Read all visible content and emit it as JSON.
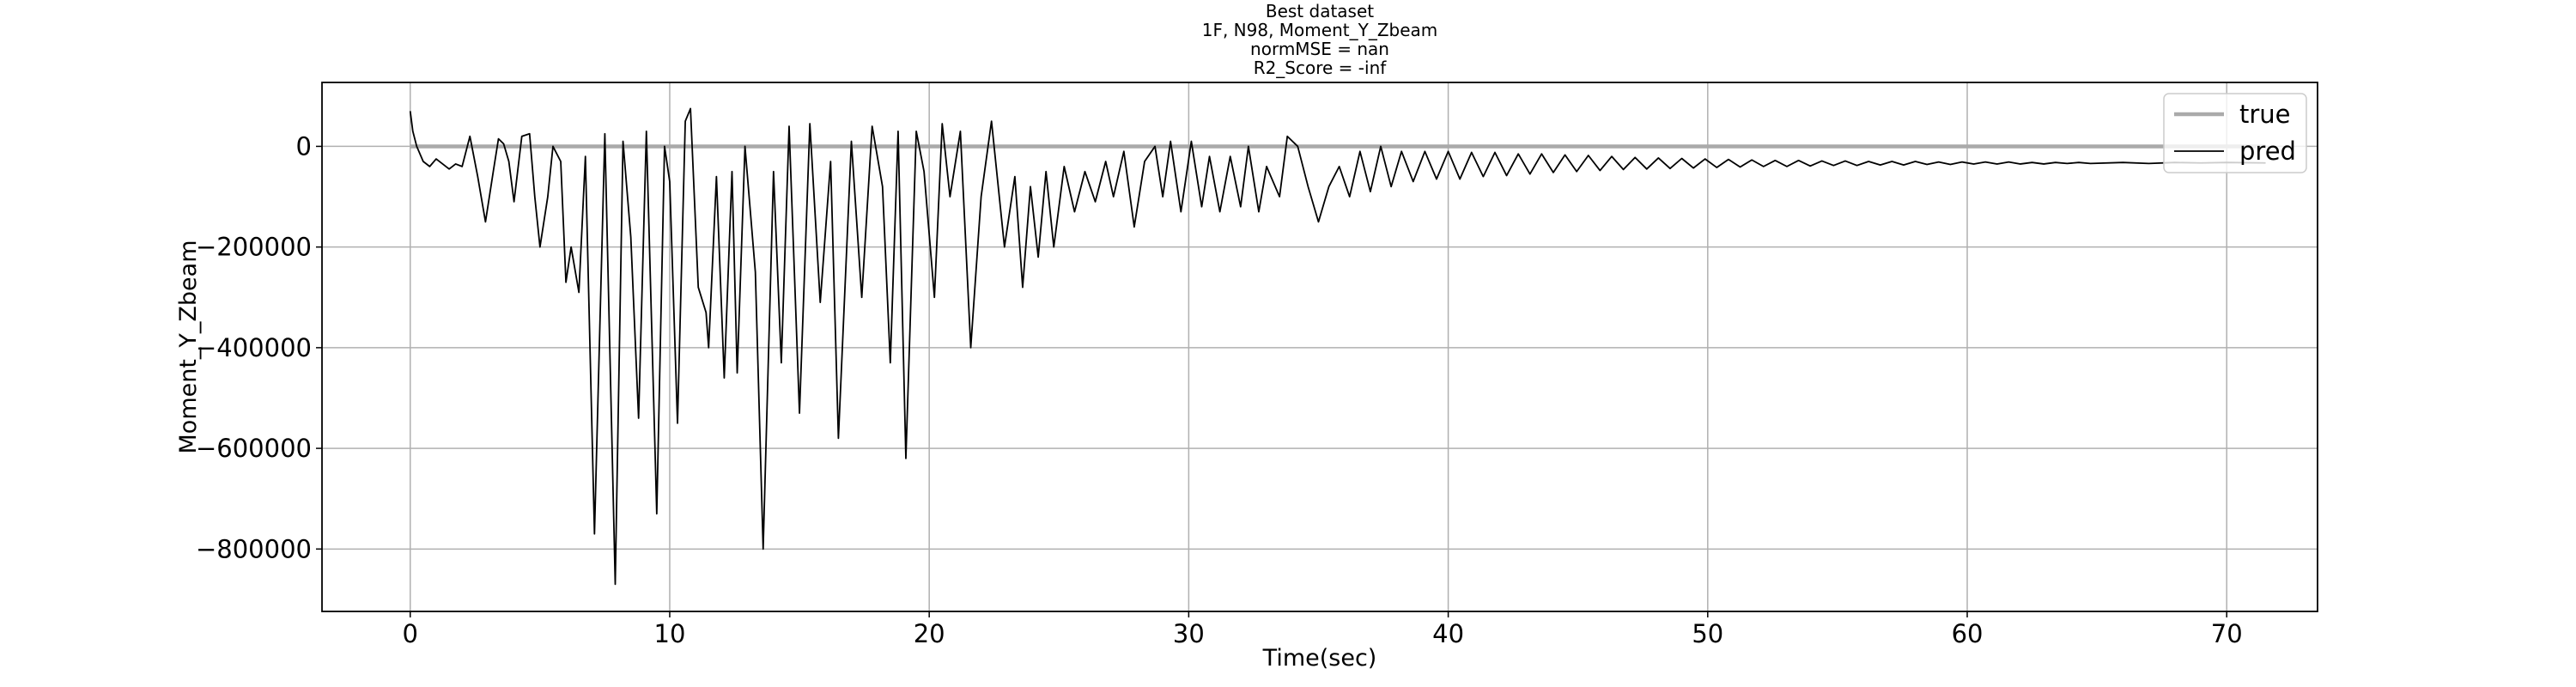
{
  "chart_data": {
    "type": "line",
    "title": [
      "Best dataset",
      "1F, N98, Moment_Y_Zbeam",
      "normMSE = nan",
      "R2_Score = -inf"
    ],
    "x_label": "Time(sec)",
    "y_label": "Moment_Y_Zbeam",
    "xlim": [
      -3.4,
      73.5
    ],
    "ylim": [
      -924000,
      127000
    ],
    "xticks": [
      0,
      10,
      20,
      30,
      40,
      50,
      60,
      70
    ],
    "yticks": [
      {
        "value": -800000,
        "label": "−800000"
      },
      {
        "value": -600000,
        "label": "−600000"
      },
      {
        "value": -400000,
        "label": "−400000"
      },
      {
        "value": -200000,
        "label": "−200000"
      },
      0
    ],
    "grid": true,
    "legend": "upper right",
    "series": [
      {
        "name": "true",
        "color": "#aaaaaa",
        "x": [
          0,
          71.5
        ],
        "values": [
          0,
          0
        ]
      },
      {
        "name": "pred",
        "color": "#000000",
        "x": [
          0,
          0.1,
          0.25,
          0.5,
          0.75,
          1.0,
          1.25,
          1.5,
          1.75,
          2.0,
          2.3,
          2.6,
          2.9,
          3.2,
          3.4,
          3.6,
          3.8,
          4.0,
          4.3,
          4.6,
          4.8,
          5.0,
          5.3,
          5.5,
          5.8,
          6.0,
          6.2,
          6.5,
          6.75,
          7.1,
          7.5,
          7.9,
          8.2,
          8.5,
          8.8,
          9.1,
          9.5,
          9.8,
          10.0,
          10.3,
          10.6,
          10.8,
          11.1,
          11.4,
          11.5,
          11.8,
          12.1,
          12.4,
          12.6,
          12.9,
          13.3,
          13.6,
          14.0,
          14.3,
          14.6,
          15.0,
          15.4,
          15.8,
          16.2,
          16.5,
          17.0,
          17.4,
          17.8,
          18.2,
          18.5,
          18.8,
          19.1,
          19.5,
          19.8,
          20.2,
          20.5,
          20.8,
          21.2,
          21.6,
          22.0,
          22.4,
          22.9,
          23.3,
          23.6,
          23.9,
          24.2,
          24.5,
          24.8,
          25.2,
          25.6,
          26.0,
          26.4,
          26.8,
          27.1,
          27.5,
          27.9,
          28.3,
          28.7,
          29.0,
          29.3,
          29.7,
          30.1,
          30.5,
          30.8,
          31.2,
          31.6,
          32.0,
          32.3,
          32.7,
          33.0,
          33.5,
          33.8,
          34.2,
          34.6,
          35.0,
          35.4,
          35.8,
          36.2,
          36.6,
          37.0,
          37.4,
          37.8,
          38.2,
          38.65,
          39.1,
          39.55,
          40.0,
          40.45,
          40.9,
          41.35,
          41.8,
          42.25,
          42.7,
          43.15,
          43.6,
          44.05,
          44.5,
          44.95,
          45.4,
          45.85,
          46.3,
          46.75,
          47.2,
          47.65,
          48.1,
          48.55,
          49.0,
          49.45,
          49.9,
          50.35,
          50.8,
          51.25,
          51.7,
          52.15,
          52.6,
          53.05,
          53.5,
          53.95,
          54.4,
          54.85,
          55.3,
          55.75,
          56.2,
          56.65,
          57.1,
          57.55,
          58.0,
          58.45,
          58.9,
          59.35,
          59.8,
          60.25,
          60.7,
          61.15,
          61.6,
          62.05,
          62.5,
          62.95,
          63.4,
          63.85,
          64.3,
          64.75,
          66,
          67,
          68,
          69,
          70,
          71.5
        ],
        "values": [
          70000,
          30000,
          0,
          -30000,
          -40000,
          -25000,
          -35000,
          -45000,
          -35000,
          -40000,
          20000,
          -60000,
          -150000,
          -50000,
          15000,
          5000,
          -30000,
          -110000,
          20000,
          25000,
          -100000,
          -200000,
          -100000,
          0,
          -30000,
          -270000,
          -200000,
          -290000,
          -20000,
          -770000,
          25000,
          -870000,
          10000,
          -180000,
          -540000,
          30000,
          -730000,
          0,
          -70000,
          -550000,
          50000,
          75000,
          -280000,
          -330000,
          -400000,
          -60000,
          -460000,
          -50000,
          -450000,
          0,
          -250000,
          -800000,
          -50000,
          -430000,
          40000,
          -530000,
          45000,
          -310000,
          -30000,
          -580000,
          10000,
          -300000,
          40000,
          -80000,
          -430000,
          30000,
          -620000,
          30000,
          -50000,
          -300000,
          45000,
          -100000,
          30000,
          -400000,
          -100000,
          50000,
          -200000,
          -60000,
          -280000,
          -80000,
          -220000,
          -50000,
          -200000,
          -40000,
          -130000,
          -50000,
          -110000,
          -30000,
          -100000,
          -10000,
          -160000,
          -30000,
          0,
          -100000,
          10000,
          -130000,
          10000,
          -120000,
          -20000,
          -130000,
          -20000,
          -120000,
          0,
          -130000,
          -40000,
          -100000,
          20000,
          0,
          -80000,
          -150000,
          -80000,
          -40000,
          -100000,
          -10000,
          -90000,
          0,
          -80000,
          -10000,
          -70000,
          -10000,
          -65000,
          -10000,
          -65000,
          -12000,
          -60000,
          -12000,
          -58000,
          -15000,
          -55000,
          -15000,
          -52000,
          -17000,
          -50000,
          -18000,
          -48000,
          -20000,
          -46000,
          -22000,
          -45000,
          -23000,
          -44000,
          -24000,
          -43000,
          -25000,
          -42000,
          -26000,
          -41000,
          -27000,
          -40000,
          -28000,
          -40000,
          -28000,
          -39000,
          -29000,
          -38000,
          -29000,
          -38000,
          -30000,
          -37000,
          -30000,
          -37000,
          -30000,
          -36000,
          -31000,
          -36000,
          -31000,
          -35000,
          -31000,
          -35000,
          -31000,
          -35000,
          -32000,
          -35000,
          -32000,
          -34000,
          -32000,
          -34000,
          -32000,
          -34000,
          -32000,
          -33000,
          -32000,
          -33000
        ]
      }
    ]
  }
}
